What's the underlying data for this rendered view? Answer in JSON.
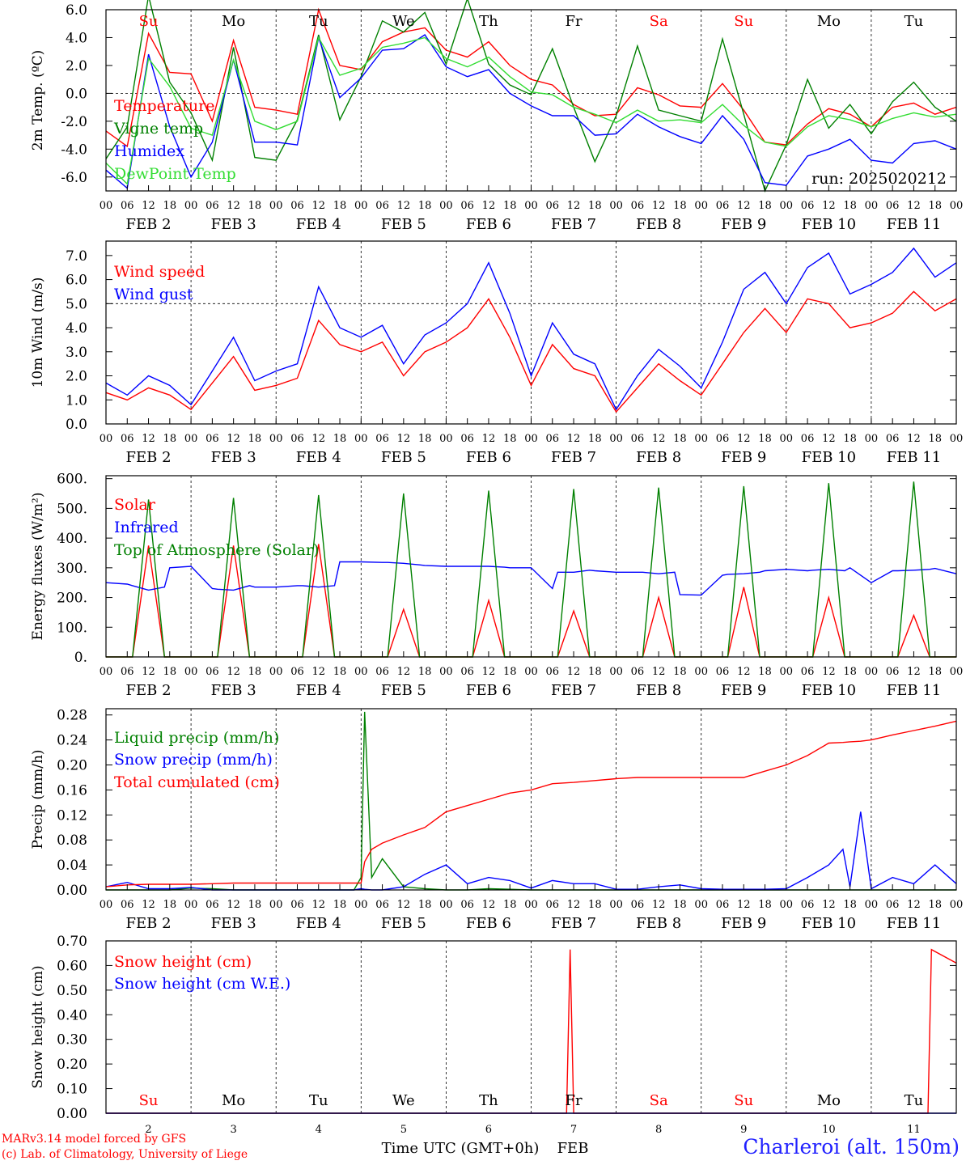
{
  "footer": {
    "model_line": "MARv3.14 model forced by GFS",
    "lab_line": "(c) Lab. of Climatology, University of Liege",
    "station": "Charleroi (alt. 150m)",
    "time_label": "Time UTC (GMT+0h)",
    "month_label": "FEB"
  },
  "colors": {
    "red": "#ff0000",
    "green": "#008000",
    "blue": "#0000ff",
    "lightgreen": "#33dd33",
    "grey": "#808080"
  },
  "axis_hours": [
    "00",
    "06",
    "12",
    "18"
  ],
  "final_hour": "00",
  "date_labels": [
    "FEB  2",
    "FEB  3",
    "FEB  4",
    "FEB  5",
    "FEB  6",
    "FEB  7",
    "FEB  8",
    "FEB  9",
    "FEB 10",
    "FEB 11"
  ],
  "day_names": [
    "Su",
    "Mo",
    "Tu",
    "We",
    "Th",
    "Fr",
    "Sa",
    "Su",
    "Mo",
    "Tu"
  ],
  "day_name_colors": [
    "#ff0000",
    "#000000",
    "#000000",
    "#000000",
    "#000000",
    "#000000",
    "#ff0000",
    "#ff0000",
    "#000000",
    "#000000"
  ],
  "bottom_day_numbers": [
    "2",
    "3",
    "4",
    "5",
    "6",
    "7",
    "8",
    "9",
    "10",
    "11"
  ],
  "chart_data": [
    {
      "type": "line",
      "ylabel": "2m Temp. (ºC)",
      "ylim": [
        -7,
        6
      ],
      "yticks": [
        "6.0",
        "4.0",
        "2.0",
        "0.0",
        "-2.0",
        "-4.0",
        "-6.0"
      ],
      "ytick_values": [
        6,
        4,
        2,
        0,
        -2,
        -4,
        -6
      ],
      "ref_line": 0,
      "annotation": "run: 2025020212",
      "show_day_names": true,
      "x_hours": [
        0,
        6,
        12,
        18,
        24,
        30,
        36,
        42,
        48,
        54,
        60,
        66,
        72,
        78,
        84,
        90,
        96,
        102,
        108,
        114,
        120,
        126,
        132,
        138,
        144,
        150,
        156,
        162,
        168,
        174,
        180,
        186,
        192,
        198,
        204,
        210,
        216,
        222,
        228,
        234,
        240
      ],
      "series": [
        {
          "name": "Temperature",
          "color": "#ff0000",
          "values": [
            -2.7,
            -3.8,
            4.3,
            1.5,
            1.4,
            -2.0,
            3.8,
            -1.0,
            -1.2,
            -1.5,
            6.0,
            2.0,
            1.7,
            3.7,
            4.4,
            4.7,
            3.1,
            2.6,
            3.7,
            2.0,
            1.0,
            0.6,
            -0.8,
            -1.6,
            -1.5,
            0.4,
            -0.1,
            -0.9,
            -1.0,
            0.7,
            -1.2,
            -3.5,
            -3.7,
            -2.2,
            -1.1,
            -1.5,
            -2.4,
            -1.0,
            -0.7,
            -1.5,
            -1.0
          ]
        },
        {
          "name": "Vigne temp",
          "color": "#008000",
          "values": [
            -4.7,
            -2.4,
            7.0,
            0.8,
            -1.4,
            -4.8,
            3.3,
            -4.6,
            -4.8,
            -1.9,
            4.2,
            -1.9,
            1.2,
            5.2,
            4.4,
            5.8,
            2.1,
            6.8,
            2.1,
            0.6,
            -0.1,
            3.2,
            -1.0,
            -4.9,
            -1.6,
            3.4,
            -1.2,
            -1.6,
            -2.0,
            3.9,
            -1.5,
            -7.0,
            -3.7,
            1.0,
            -2.5,
            -0.8,
            -2.9,
            -0.6,
            0.8,
            -1.0,
            -2.0
          ]
        },
        {
          "name": "Humidex",
          "color": "#0000ff",
          "values": [
            -5.5,
            -6.8,
            2.8,
            -2.4,
            -6.0,
            -3.5,
            2.4,
            -3.5,
            -3.5,
            -3.7,
            4.0,
            -0.3,
            1.1,
            3.1,
            3.2,
            4.2,
            1.9,
            1.2,
            1.7,
            0.0,
            -0.9,
            -1.6,
            -1.6,
            -3.0,
            -2.9,
            -1.5,
            -2.4,
            -3.1,
            -3.6,
            -1.6,
            -3.3,
            -6.4,
            -6.6,
            -4.5,
            -4.0,
            -3.3,
            -4.8,
            -5.0,
            -3.6,
            -3.4,
            -4.0
          ]
        },
        {
          "name": "DewPoint Temp",
          "color": "#33dd33",
          "values": [
            -5.0,
            -6.5,
            2.5,
            0.5,
            -2.5,
            -3.0,
            2.4,
            -2.0,
            -2.6,
            -2.0,
            4.0,
            1.3,
            1.8,
            3.3,
            3.6,
            4.0,
            2.5,
            1.9,
            2.6,
            1.2,
            0.1,
            -0.1,
            -1.0,
            -1.5,
            -2.1,
            -1.2,
            -2.0,
            -1.9,
            -2.1,
            -0.8,
            -2.3,
            -3.5,
            -3.8,
            -2.4,
            -1.6,
            -1.9,
            -2.4,
            -1.8,
            -1.4,
            -1.7,
            -1.5
          ]
        }
      ]
    },
    {
      "type": "line",
      "ylabel": "10m Wind (m/s)",
      "ylim": [
        0,
        7.6
      ],
      "yticks": [
        "7.0",
        "6.0",
        "5.0",
        "4.0",
        "3.0",
        "2.0",
        "1.0",
        "0.0"
      ],
      "ytick_values": [
        7,
        6,
        5,
        4,
        3,
        2,
        1,
        0
      ],
      "ref_line": 5,
      "x_hours": [
        0,
        6,
        12,
        18,
        24,
        30,
        36,
        42,
        48,
        54,
        60,
        66,
        72,
        78,
        84,
        90,
        96,
        102,
        108,
        114,
        120,
        126,
        132,
        138,
        144,
        150,
        156,
        162,
        168,
        174,
        180,
        186,
        192,
        198,
        204,
        210,
        216,
        222,
        228,
        234,
        240
      ],
      "series": [
        {
          "name": "Wind speed",
          "color": "#ff0000",
          "values": [
            1.3,
            1.0,
            1.5,
            1.2,
            0.6,
            1.7,
            2.8,
            1.4,
            1.6,
            1.9,
            4.3,
            3.3,
            3.0,
            3.4,
            2.0,
            3.0,
            3.4,
            4.0,
            5.2,
            3.6,
            1.6,
            3.3,
            2.3,
            2.0,
            0.5,
            1.5,
            2.5,
            1.8,
            1.2,
            2.5,
            3.8,
            4.8,
            3.8,
            5.2,
            5.0,
            4.0,
            4.2,
            4.6,
            5.5,
            4.7,
            5.2
          ]
        },
        {
          "name": "Wind gust",
          "color": "#0000ff",
          "values": [
            1.7,
            1.2,
            2.0,
            1.6,
            0.8,
            2.2,
            3.6,
            1.8,
            2.2,
            2.5,
            5.7,
            4.0,
            3.6,
            4.1,
            2.5,
            3.7,
            4.2,
            5.0,
            6.7,
            4.6,
            2.0,
            4.2,
            2.9,
            2.5,
            0.6,
            2.0,
            3.1,
            2.4,
            1.5,
            3.4,
            5.6,
            6.3,
            5.0,
            6.5,
            7.1,
            5.4,
            5.8,
            6.3,
            7.3,
            6.1,
            6.7
          ]
        }
      ]
    },
    {
      "type": "line",
      "ylabel": "Energy fluxes (W/m²)",
      "ylim": [
        0,
        610
      ],
      "yticks": [
        "600.",
        "500.",
        "400.",
        "300.",
        "200.",
        "100.",
        "0."
      ],
      "ytick_values": [
        600,
        500,
        400,
        300,
        200,
        100,
        0
      ],
      "x_hours": [
        0,
        6,
        7.5,
        12,
        16.5,
        18,
        24,
        30,
        31.5,
        36,
        40.5,
        42,
        48,
        54,
        55.5,
        60,
        64.5,
        66,
        72,
        78,
        79.5,
        84,
        88.5,
        90,
        96,
        102,
        103.5,
        108,
        112.5,
        114,
        120,
        126,
        127.5,
        132,
        136.5,
        138,
        144,
        150,
        151.5,
        156,
        160.5,
        162,
        168,
        174,
        175.5,
        180,
        184.5,
        186,
        192,
        198,
        199.5,
        204,
        208.5,
        210,
        216,
        222,
        223.5,
        228,
        232.5,
        234,
        240
      ],
      "series": [
        {
          "name": "Solar",
          "color": "#ff0000",
          "values": [
            0,
            0,
            0,
            375,
            0,
            0,
            0,
            0,
            0,
            375,
            0,
            0,
            0,
            0,
            0,
            380,
            0,
            0,
            0,
            0,
            0,
            160,
            0,
            0,
            0,
            0,
            0,
            190,
            0,
            0,
            0,
            0,
            0,
            155,
            0,
            0,
            0,
            0,
            0,
            200,
            0,
            0,
            0,
            0,
            0,
            235,
            0,
            0,
            0,
            0,
            0,
            200,
            0,
            0,
            0,
            0,
            0,
            140,
            0,
            0,
            0
          ]
        },
        {
          "name": "Infrared",
          "color": "#0000ff",
          "values": [
            250,
            245,
            240,
            225,
            235,
            300,
            305,
            230,
            228,
            225,
            240,
            235,
            235,
            240,
            240,
            235,
            240,
            320,
            320,
            318,
            318,
            315,
            310,
            308,
            305,
            305,
            305,
            305,
            302,
            300,
            300,
            230,
            285,
            285,
            292,
            290,
            285,
            285,
            285,
            280,
            285,
            210,
            208,
            275,
            278,
            280,
            285,
            290,
            295,
            290,
            292,
            295,
            290,
            300,
            250,
            290,
            290,
            292,
            295,
            298,
            280
          ]
        },
        {
          "name": "Top of Atmosphere (Solar)",
          "color": "#008000",
          "values": [
            0,
            0,
            0,
            530,
            0,
            0,
            0,
            0,
            0,
            535,
            0,
            0,
            0,
            0,
            0,
            545,
            0,
            0,
            0,
            0,
            0,
            550,
            0,
            0,
            0,
            0,
            0,
            560,
            0,
            0,
            0,
            0,
            0,
            565,
            0,
            0,
            0,
            0,
            0,
            570,
            0,
            0,
            0,
            0,
            0,
            575,
            0,
            0,
            0,
            0,
            0,
            585,
            0,
            0,
            0,
            0,
            0,
            590,
            0,
            0,
            0
          ]
        }
      ]
    },
    {
      "type": "line",
      "ylabel": "Precip (mm/h)",
      "ylim": [
        0,
        0.29
      ],
      "yticks": [
        "0.28",
        "0.24",
        "0.20",
        "0.16",
        "0.12",
        "0.08",
        "0.04",
        "0.00"
      ],
      "ytick_values": [
        0.28,
        0.24,
        0.2,
        0.16,
        0.12,
        0.08,
        0.04,
        0.0
      ],
      "x_hours": [
        0,
        6,
        12,
        18,
        24,
        30,
        36,
        42,
        48,
        54,
        60,
        66,
        70,
        72,
        73,
        75,
        78,
        84,
        90,
        96,
        102,
        108,
        114,
        120,
        126,
        132,
        138,
        144,
        150,
        156,
        162,
        168,
        174,
        180,
        186,
        192,
        198,
        204,
        208,
        210,
        213,
        216,
        222,
        228,
        234,
        240
      ],
      "series": [
        {
          "name": "Liquid precip (mm/h)",
          "color": "#008000",
          "values": [
            0,
            0,
            0,
            0,
            0.003,
            0.002,
            0,
            0,
            0,
            0,
            0,
            0,
            0,
            0.02,
            0.285,
            0.02,
            0.05,
            0.005,
            0.002,
            0,
            0,
            0.002,
            0.001,
            0,
            0,
            0,
            0,
            0,
            0,
            0,
            0,
            0,
            0,
            0,
            0,
            0,
            0,
            0,
            0,
            0,
            0,
            0,
            0,
            0,
            0,
            0
          ]
        },
        {
          "name": "Snow precip (mm/h)",
          "color": "#0000ff",
          "values": [
            0.005,
            0.012,
            0.002,
            0.002,
            0.004,
            0,
            0,
            0,
            0,
            0,
            0,
            0,
            0,
            0.002,
            0.001,
            0,
            0,
            0.005,
            0.025,
            0.04,
            0.01,
            0.02,
            0.015,
            0.003,
            0.015,
            0.01,
            0.01,
            0.001,
            0.001,
            0.005,
            0.008,
            0.002,
            0.001,
            0.001,
            0.001,
            0.002,
            0.02,
            0.04,
            0.065,
            0.005,
            0.125,
            0.002,
            0.02,
            0.01,
            0.04,
            0.01
          ]
        },
        {
          "name": "Total cumulated (cm)",
          "color": "#ff0000",
          "values": [
            0.005,
            0.008,
            0.009,
            0.009,
            0.009,
            0.01,
            0.011,
            0.011,
            0.011,
            0.011,
            0.011,
            0.011,
            0.011,
            0.011,
            0.045,
            0.065,
            0.075,
            0.088,
            0.1,
            0.125,
            0.135,
            0.145,
            0.155,
            0.16,
            0.17,
            0.172,
            0.175,
            0.178,
            0.18,
            0.18,
            0.18,
            0.18,
            0.18,
            0.18,
            0.19,
            0.2,
            0.215,
            0.235,
            0.236,
            0.237,
            0.238,
            0.24,
            0.248,
            0.255,
            0.262,
            0.27
          ]
        }
      ]
    },
    {
      "type": "line",
      "ylabel": "Snow height (cm)",
      "ylim": [
        0,
        0.7
      ],
      "yticks": [
        "0.70",
        "0.60",
        "0.50",
        "0.40",
        "0.30",
        "0.20",
        "0.10",
        "0.00"
      ],
      "ytick_values": [
        0.7,
        0.6,
        0.5,
        0.4,
        0.3,
        0.2,
        0.1,
        0.0
      ],
      "bottom_axis": true,
      "x_hours": [
        0,
        130,
        131,
        132,
        133,
        232,
        233,
        240
      ],
      "series": [
        {
          "name": "Snow height (cm)",
          "color": "#ff0000",
          "values": [
            0,
            0,
            0.665,
            0,
            0,
            0,
            0.665,
            0.61
          ]
        },
        {
          "name": "Snow height (cm W.E.)",
          "color": "#0000ff",
          "values": [
            0,
            0,
            0,
            0,
            0,
            0,
            0,
            0
          ]
        }
      ]
    }
  ]
}
